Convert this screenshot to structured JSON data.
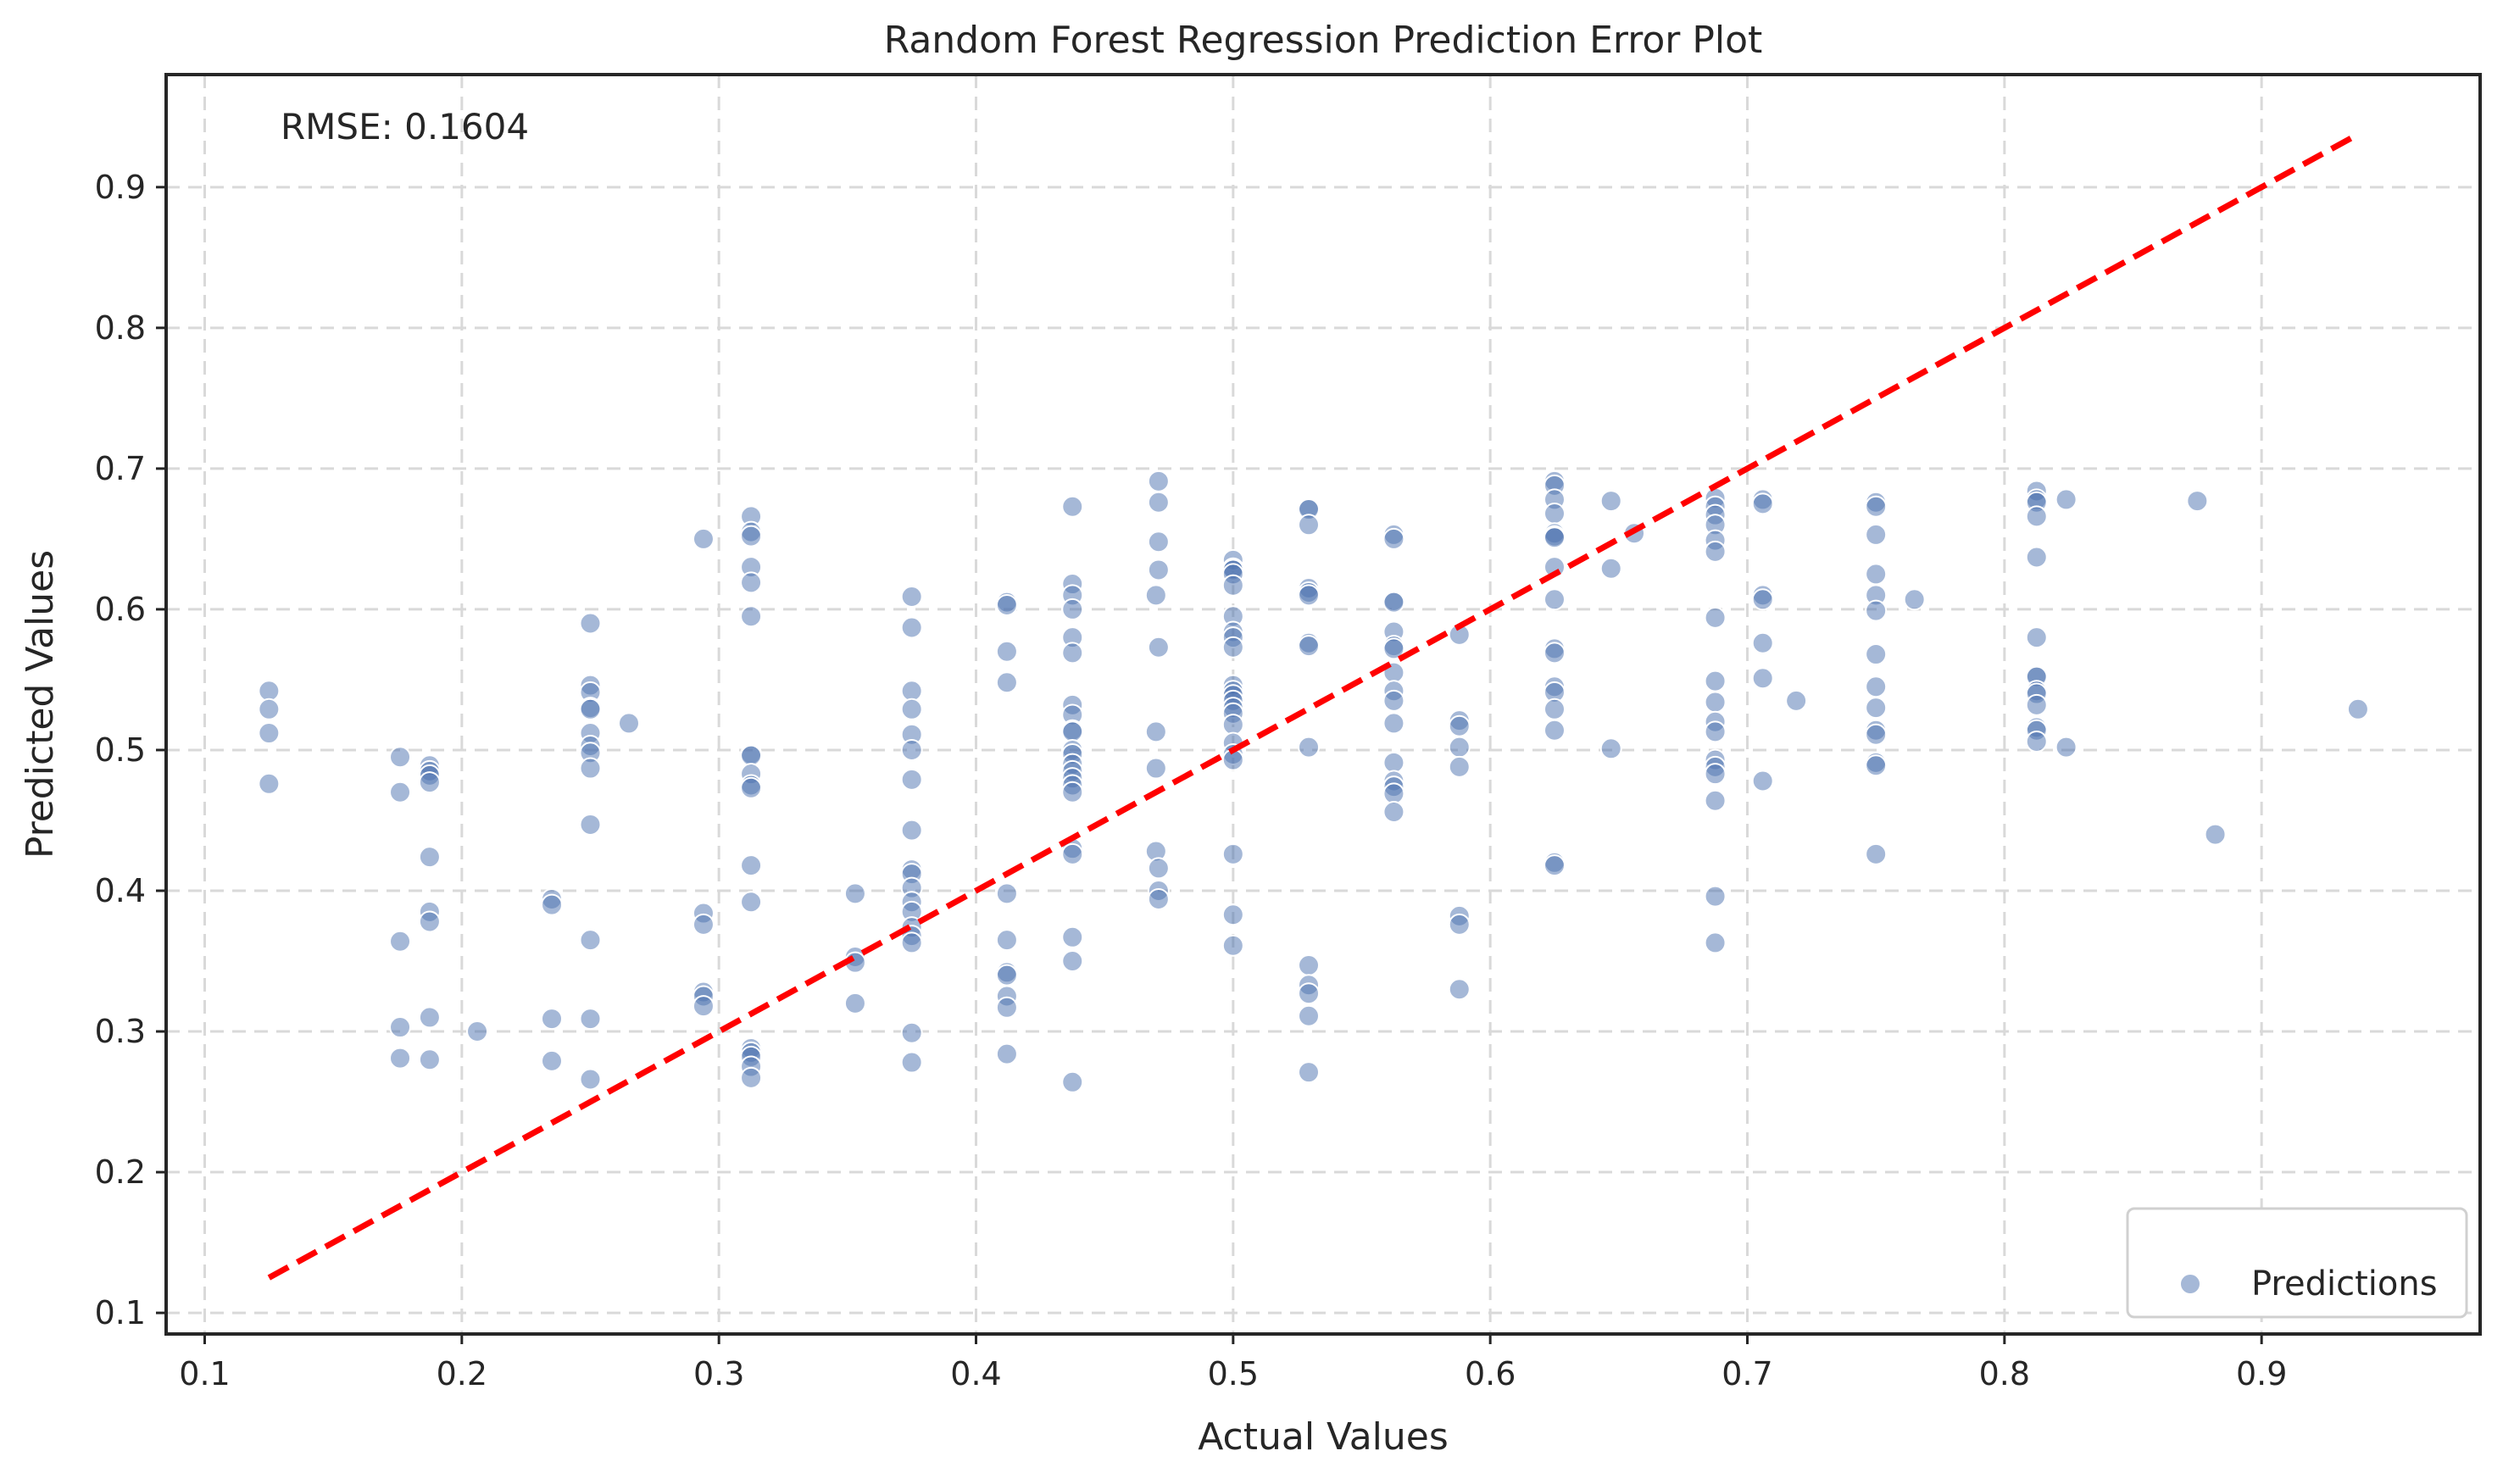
{
  "chart_data": {
    "type": "scatter",
    "title": "Random Forest Regression Prediction Error Plot",
    "xlabel": "Actual Values",
    "ylabel": "Predicted Values",
    "xlim": [
      0.085,
      0.985
    ],
    "ylim": [
      0.085,
      0.98
    ],
    "xticks": [
      0.1,
      0.2,
      0.3,
      0.4,
      0.5,
      0.6,
      0.7,
      0.8,
      0.9
    ],
    "yticks": [
      0.1,
      0.2,
      0.3,
      0.4,
      0.5,
      0.6,
      0.7,
      0.8,
      0.9
    ],
    "grid": true,
    "legend_position": "bottom-right",
    "annotation": "RMSE: 0.1604",
    "reference_line": {
      "from": [
        0.125,
        0.125
      ],
      "to": [
        0.9375,
        0.9375
      ],
      "color": "#ff0000",
      "style": "dashed"
    },
    "series": [
      {
        "name": "Predictions",
        "color": "#4c72b0",
        "points": [
          [
            0.125,
            0.542
          ],
          [
            0.125,
            0.529
          ],
          [
            0.125,
            0.512
          ],
          [
            0.125,
            0.476
          ],
          [
            0.176,
            0.495
          ],
          [
            0.176,
            0.47
          ],
          [
            0.176,
            0.364
          ],
          [
            0.176,
            0.303
          ],
          [
            0.176,
            0.281
          ],
          [
            0.1875,
            0.489
          ],
          [
            0.1875,
            0.485
          ],
          [
            0.1875,
            0.482
          ],
          [
            0.1875,
            0.477
          ],
          [
            0.1875,
            0.424
          ],
          [
            0.1875,
            0.385
          ],
          [
            0.1875,
            0.378
          ],
          [
            0.1875,
            0.31
          ],
          [
            0.1875,
            0.28
          ],
          [
            0.206,
            0.3
          ],
          [
            0.235,
            0.394
          ],
          [
            0.235,
            0.39
          ],
          [
            0.235,
            0.309
          ],
          [
            0.235,
            0.279
          ],
          [
            0.25,
            0.59
          ],
          [
            0.25,
            0.546
          ],
          [
            0.25,
            0.541
          ],
          [
            0.25,
            0.53
          ],
          [
            0.25,
            0.529
          ],
          [
            0.25,
            0.512
          ],
          [
            0.25,
            0.503
          ],
          [
            0.25,
            0.498
          ],
          [
            0.25,
            0.487
          ],
          [
            0.25,
            0.447
          ],
          [
            0.25,
            0.365
          ],
          [
            0.25,
            0.309
          ],
          [
            0.25,
            0.266
          ],
          [
            0.265,
            0.519
          ],
          [
            0.294,
            0.65
          ],
          [
            0.294,
            0.384
          ],
          [
            0.294,
            0.376
          ],
          [
            0.294,
            0.328
          ],
          [
            0.294,
            0.325
          ],
          [
            0.294,
            0.318
          ],
          [
            0.3125,
            0.666
          ],
          [
            0.3125,
            0.655
          ],
          [
            0.3125,
            0.652
          ],
          [
            0.3125,
            0.63
          ],
          [
            0.3125,
            0.619
          ],
          [
            0.3125,
            0.595
          ],
          [
            0.3125,
            0.497
          ],
          [
            0.3125,
            0.496
          ],
          [
            0.3125,
            0.483
          ],
          [
            0.3125,
            0.475
          ],
          [
            0.3125,
            0.473
          ],
          [
            0.3125,
            0.418
          ],
          [
            0.3125,
            0.392
          ],
          [
            0.3125,
            0.288
          ],
          [
            0.3125,
            0.285
          ],
          [
            0.3125,
            0.282
          ],
          [
            0.3125,
            0.275
          ],
          [
            0.3125,
            0.267
          ],
          [
            0.353,
            0.398
          ],
          [
            0.353,
            0.353
          ],
          [
            0.353,
            0.349
          ],
          [
            0.353,
            0.32
          ],
          [
            0.375,
            0.609
          ],
          [
            0.375,
            0.587
          ],
          [
            0.375,
            0.542
          ],
          [
            0.375,
            0.529
          ],
          [
            0.375,
            0.511
          ],
          [
            0.375,
            0.5
          ],
          [
            0.375,
            0.479
          ],
          [
            0.375,
            0.443
          ],
          [
            0.375,
            0.415
          ],
          [
            0.375,
            0.412
          ],
          [
            0.375,
            0.402
          ],
          [
            0.375,
            0.392
          ],
          [
            0.375,
            0.385
          ],
          [
            0.375,
            0.374
          ],
          [
            0.375,
            0.368
          ],
          [
            0.375,
            0.363
          ],
          [
            0.375,
            0.299
          ],
          [
            0.375,
            0.278
          ],
          [
            0.412,
            0.605
          ],
          [
            0.412,
            0.603
          ],
          [
            0.412,
            0.57
          ],
          [
            0.412,
            0.548
          ],
          [
            0.412,
            0.398
          ],
          [
            0.412,
            0.365
          ],
          [
            0.412,
            0.342
          ],
          [
            0.412,
            0.34
          ],
          [
            0.412,
            0.325
          ],
          [
            0.412,
            0.317
          ],
          [
            0.412,
            0.284
          ],
          [
            0.4375,
            0.673
          ],
          [
            0.4375,
            0.618
          ],
          [
            0.4375,
            0.61
          ],
          [
            0.4375,
            0.6
          ],
          [
            0.4375,
            0.58
          ],
          [
            0.4375,
            0.569
          ],
          [
            0.4375,
            0.532
          ],
          [
            0.4375,
            0.525
          ],
          [
            0.4375,
            0.514
          ],
          [
            0.4375,
            0.513
          ],
          [
            0.4375,
            0.5
          ],
          [
            0.4375,
            0.497
          ],
          [
            0.4375,
            0.49
          ],
          [
            0.4375,
            0.485
          ],
          [
            0.4375,
            0.48
          ],
          [
            0.4375,
            0.475
          ],
          [
            0.4375,
            0.47
          ],
          [
            0.4375,
            0.43
          ],
          [
            0.4375,
            0.426
          ],
          [
            0.4375,
            0.367
          ],
          [
            0.4375,
            0.35
          ],
          [
            0.4375,
            0.264
          ],
          [
            0.47,
            0.61
          ],
          [
            0.47,
            0.513
          ],
          [
            0.47,
            0.487
          ],
          [
            0.47,
            0.428
          ],
          [
            0.471,
            0.691
          ],
          [
            0.471,
            0.676
          ],
          [
            0.471,
            0.648
          ],
          [
            0.471,
            0.628
          ],
          [
            0.471,
            0.573
          ],
          [
            0.471,
            0.416
          ],
          [
            0.471,
            0.4
          ],
          [
            0.471,
            0.394
          ],
          [
            0.5,
            0.635
          ],
          [
            0.5,
            0.629
          ],
          [
            0.5,
            0.628
          ],
          [
            0.5,
            0.625
          ],
          [
            0.5,
            0.617
          ],
          [
            0.5,
            0.595
          ],
          [
            0.5,
            0.584
          ],
          [
            0.5,
            0.58
          ],
          [
            0.5,
            0.573
          ],
          [
            0.5,
            0.546
          ],
          [
            0.5,
            0.542
          ],
          [
            0.5,
            0.539
          ],
          [
            0.5,
            0.535
          ],
          [
            0.5,
            0.53
          ],
          [
            0.5,
            0.526
          ],
          [
            0.5,
            0.518
          ],
          [
            0.5,
            0.505
          ],
          [
            0.5,
            0.497
          ],
          [
            0.5,
            0.493
          ],
          [
            0.5,
            0.426
          ],
          [
            0.5,
            0.383
          ],
          [
            0.5,
            0.361
          ],
          [
            0.5294,
            0.672
          ],
          [
            0.5294,
            0.671
          ],
          [
            0.5294,
            0.66
          ],
          [
            0.5294,
            0.615
          ],
          [
            0.5294,
            0.612
          ],
          [
            0.5294,
            0.61
          ],
          [
            0.5294,
            0.576
          ],
          [
            0.5294,
            0.574
          ],
          [
            0.5294,
            0.502
          ],
          [
            0.5294,
            0.347
          ],
          [
            0.5294,
            0.333
          ],
          [
            0.5294,
            0.327
          ],
          [
            0.5294,
            0.311
          ],
          [
            0.5294,
            0.271
          ],
          [
            0.5625,
            0.653
          ],
          [
            0.5625,
            0.65
          ],
          [
            0.5625,
            0.606
          ],
          [
            0.5625,
            0.605
          ],
          [
            0.5625,
            0.584
          ],
          [
            0.5625,
            0.574
          ],
          [
            0.5625,
            0.572
          ],
          [
            0.5625,
            0.555
          ],
          [
            0.5625,
            0.542
          ],
          [
            0.5625,
            0.535
          ],
          [
            0.5625,
            0.519
          ],
          [
            0.5625,
            0.491
          ],
          [
            0.5625,
            0.478
          ],
          [
            0.5625,
            0.474
          ],
          [
            0.5625,
            0.469
          ],
          [
            0.5625,
            0.456
          ],
          [
            0.588,
            0.582
          ],
          [
            0.588,
            0.521
          ],
          [
            0.588,
            0.517
          ],
          [
            0.588,
            0.502
          ],
          [
            0.588,
            0.488
          ],
          [
            0.588,
            0.382
          ],
          [
            0.588,
            0.376
          ],
          [
            0.588,
            0.33
          ],
          [
            0.625,
            0.691
          ],
          [
            0.625,
            0.688
          ],
          [
            0.625,
            0.678
          ],
          [
            0.625,
            0.668
          ],
          [
            0.625,
            0.654
          ],
          [
            0.625,
            0.652
          ],
          [
            0.625,
            0.651
          ],
          [
            0.625,
            0.63
          ],
          [
            0.625,
            0.607
          ],
          [
            0.625,
            0.572
          ],
          [
            0.625,
            0.569
          ],
          [
            0.625,
            0.545
          ],
          [
            0.625,
            0.541
          ],
          [
            0.625,
            0.529
          ],
          [
            0.625,
            0.514
          ],
          [
            0.625,
            0.42
          ],
          [
            0.625,
            0.418
          ],
          [
            0.647,
            0.677
          ],
          [
            0.647,
            0.629
          ],
          [
            0.647,
            0.501
          ],
          [
            0.656,
            0.654
          ],
          [
            0.6875,
            0.679
          ],
          [
            0.6875,
            0.673
          ],
          [
            0.6875,
            0.667
          ],
          [
            0.6875,
            0.66
          ],
          [
            0.6875,
            0.649
          ],
          [
            0.6875,
            0.641
          ],
          [
            0.6875,
            0.594
          ],
          [
            0.6875,
            0.549
          ],
          [
            0.6875,
            0.534
          ],
          [
            0.6875,
            0.52
          ],
          [
            0.6875,
            0.513
          ],
          [
            0.6875,
            0.493
          ],
          [
            0.6875,
            0.488
          ],
          [
            0.6875,
            0.483
          ],
          [
            0.6875,
            0.464
          ],
          [
            0.6875,
            0.396
          ],
          [
            0.6875,
            0.363
          ],
          [
            0.706,
            0.678
          ],
          [
            0.706,
            0.675
          ],
          [
            0.706,
            0.61
          ],
          [
            0.706,
            0.607
          ],
          [
            0.706,
            0.576
          ],
          [
            0.706,
            0.551
          ],
          [
            0.706,
            0.478
          ],
          [
            0.719,
            0.535
          ],
          [
            0.75,
            0.676
          ],
          [
            0.75,
            0.673
          ],
          [
            0.75,
            0.653
          ],
          [
            0.75,
            0.625
          ],
          [
            0.75,
            0.61
          ],
          [
            0.75,
            0.599
          ],
          [
            0.75,
            0.568
          ],
          [
            0.75,
            0.545
          ],
          [
            0.75,
            0.53
          ],
          [
            0.75,
            0.514
          ],
          [
            0.75,
            0.511
          ],
          [
            0.75,
            0.491
          ],
          [
            0.75,
            0.489
          ],
          [
            0.75,
            0.426
          ],
          [
            0.765,
            0.607
          ],
          [
            0.8125,
            0.684
          ],
          [
            0.8125,
            0.678
          ],
          [
            0.8125,
            0.676
          ],
          [
            0.8125,
            0.666
          ],
          [
            0.8125,
            0.637
          ],
          [
            0.8125,
            0.58
          ],
          [
            0.8125,
            0.553
          ],
          [
            0.8125,
            0.552
          ],
          [
            0.8125,
            0.542
          ],
          [
            0.8125,
            0.54
          ],
          [
            0.8125,
            0.532
          ],
          [
            0.8125,
            0.516
          ],
          [
            0.8125,
            0.514
          ],
          [
            0.8125,
            0.506
          ],
          [
            0.824,
            0.678
          ],
          [
            0.824,
            0.502
          ],
          [
            0.875,
            0.677
          ],
          [
            0.882,
            0.44
          ],
          [
            0.9375,
            0.529
          ]
        ]
      }
    ]
  }
}
